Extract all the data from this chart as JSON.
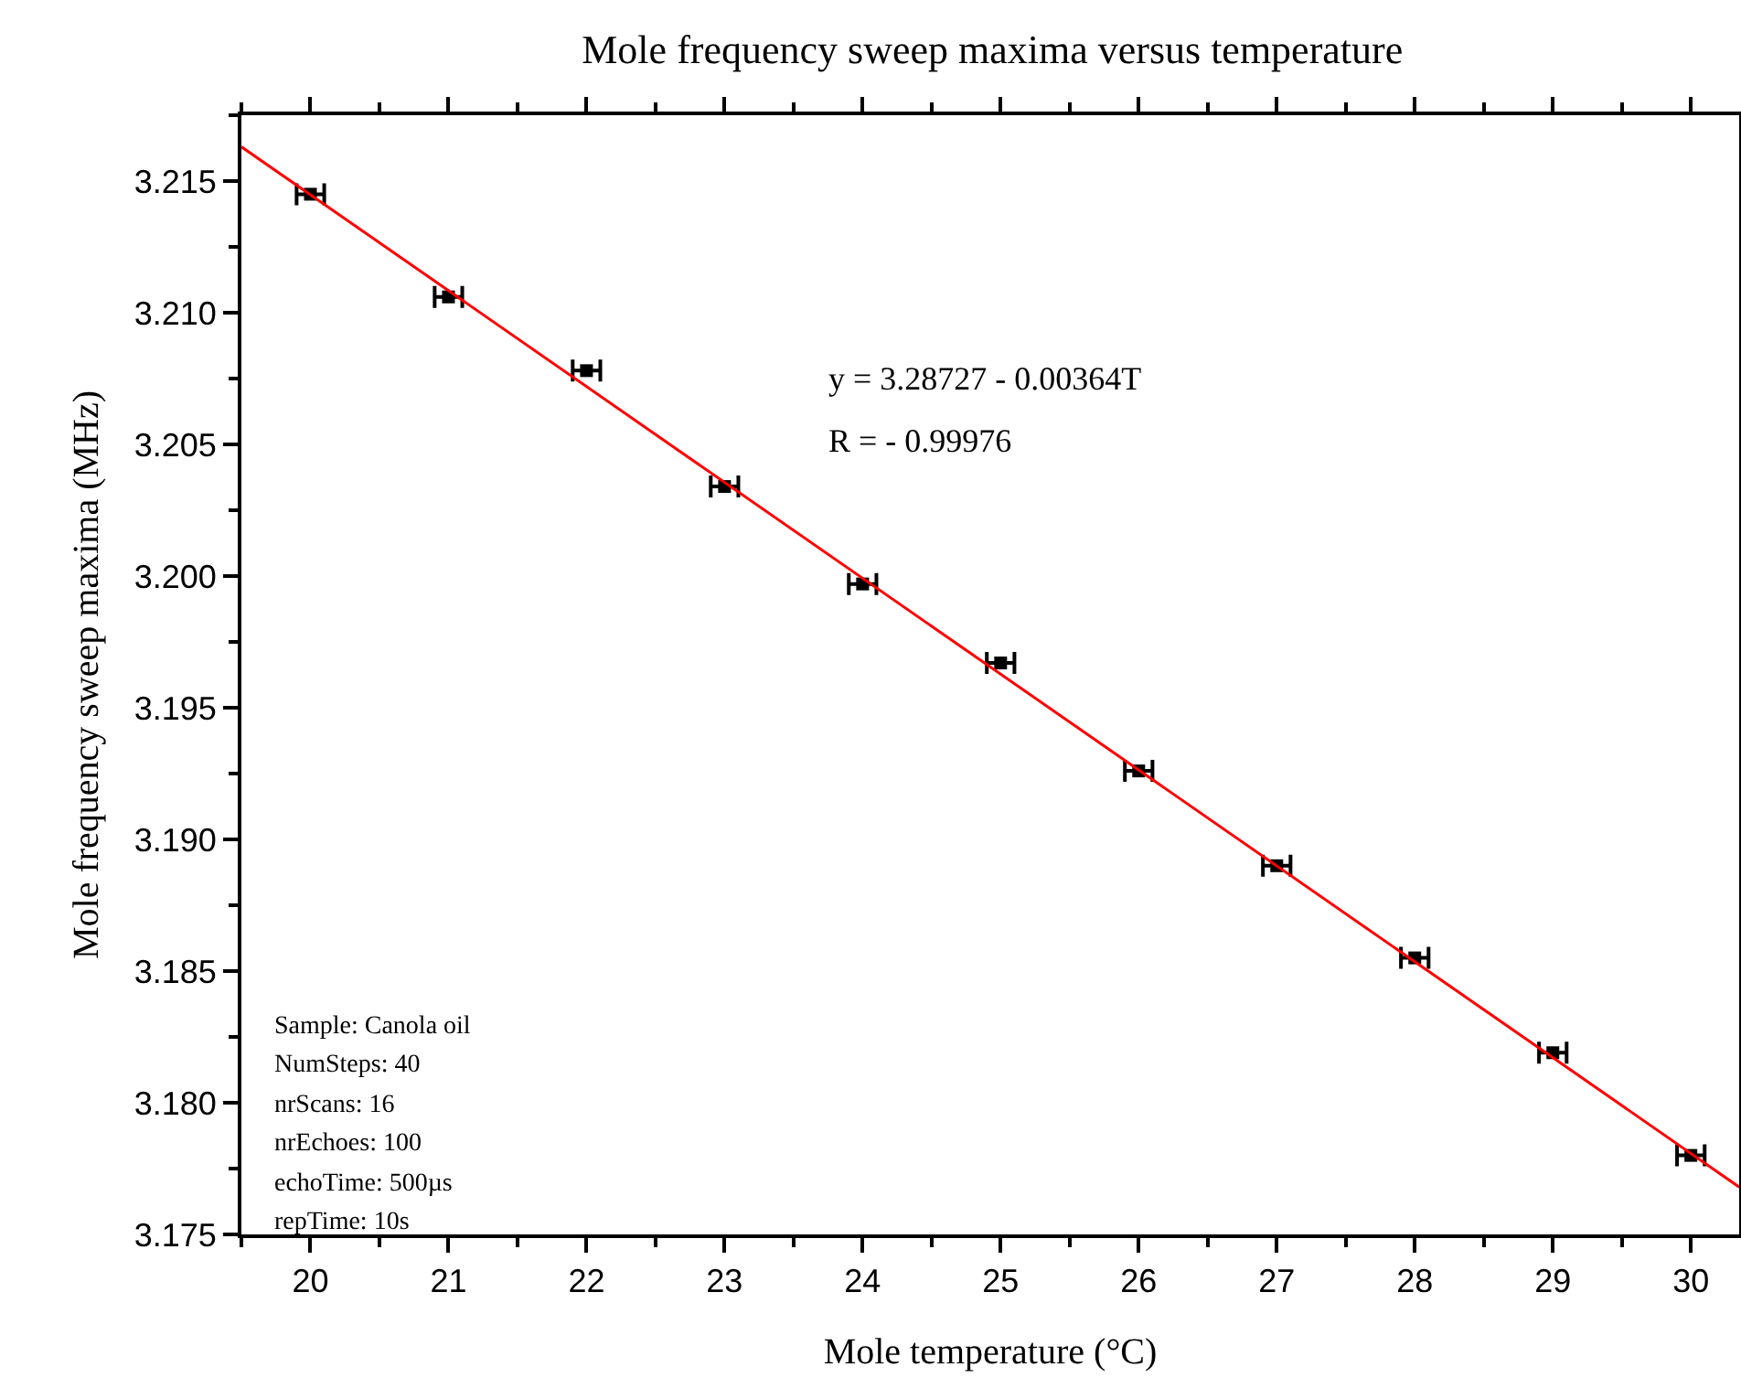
{
  "chart_data": {
    "type": "scatter",
    "title": "Mole frequency sweep maxima versus temperature",
    "xlabel": "Mole temperature (°C)",
    "ylabel": "Mole frequency sweep maxima (MHz)",
    "x": [
      20,
      21,
      22,
      23,
      24,
      25,
      26,
      27,
      28,
      29,
      30
    ],
    "series": [
      {
        "color": "#000000",
        "marker": "square",
        "values": [
          3.2145,
          3.2106,
          3.2078,
          3.2034,
          3.1997,
          3.1967,
          3.1926,
          3.189,
          3.1855,
          3.1819,
          3.178
        ],
        "xerrors": [
          0.1,
          0.1,
          0.1,
          0.1,
          0.1,
          0.1,
          0.1,
          0.1,
          0.1,
          0.1,
          0.1
        ]
      },
      {
        "type": "line",
        "color": "#ff0000",
        "marker": "none",
        "line_style": "solid",
        "x": [
          19.5,
          30.35
        ],
        "values": [
          3.2163,
          3.1768
        ]
      }
    ],
    "xlim": [
      19.5,
      30.35
    ],
    "xticks": [
      20,
      21,
      22,
      23,
      24,
      25,
      26,
      27,
      28,
      29,
      30
    ],
    "ylim": [
      3.175,
      3.2175
    ],
    "yticks": [
      {
        "value": 3.175,
        "label": "3.175"
      },
      {
        "value": 3.18,
        "label": "3.180"
      },
      3.185,
      {
        "value": 3.19,
        "label": "3.190"
      },
      3.195,
      {
        "value": 3.2,
        "label": "3.200"
      },
      3.205,
      {
        "value": 3.21,
        "label": "3.210"
      },
      3.215
    ],
    "grid": false,
    "annotations": [
      "y = 3.28727 - 0.00364T",
      "R = - 0.99976",
      "Sample: Canola oil",
      "NumSteps: 40",
      "nrScans: 16",
      "nrEchoes: 100",
      "echoTime: 500µs",
      "repTime: 10s"
    ]
  }
}
